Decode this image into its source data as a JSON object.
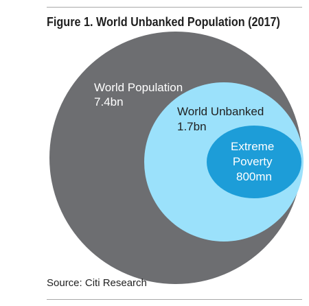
{
  "title": "Figure 1. World Unbanked Population (2017)",
  "source": "Source: Citi Research",
  "chart_data": {
    "type": "nested-circles",
    "circles": [
      {
        "name": "World Population",
        "value": 7.4,
        "unit": "bn",
        "label_lines": [
          "World Population",
          "7.4bn"
        ],
        "color": "#6d6e71",
        "text_color": "#ffffff"
      },
      {
        "name": "World Unbanked",
        "value": 1.7,
        "unit": "bn",
        "label_lines": [
          "World Unbanked",
          "1.7bn"
        ],
        "color": "#9be1fb",
        "text_color": "#1f1f1f"
      },
      {
        "name": "Extreme Poverty",
        "value": 800,
        "unit": "mn",
        "label_lines": [
          "Extreme",
          "Poverty",
          "800mn"
        ],
        "color": "#1d9dd8",
        "text_color": "#ffffff"
      }
    ]
  }
}
